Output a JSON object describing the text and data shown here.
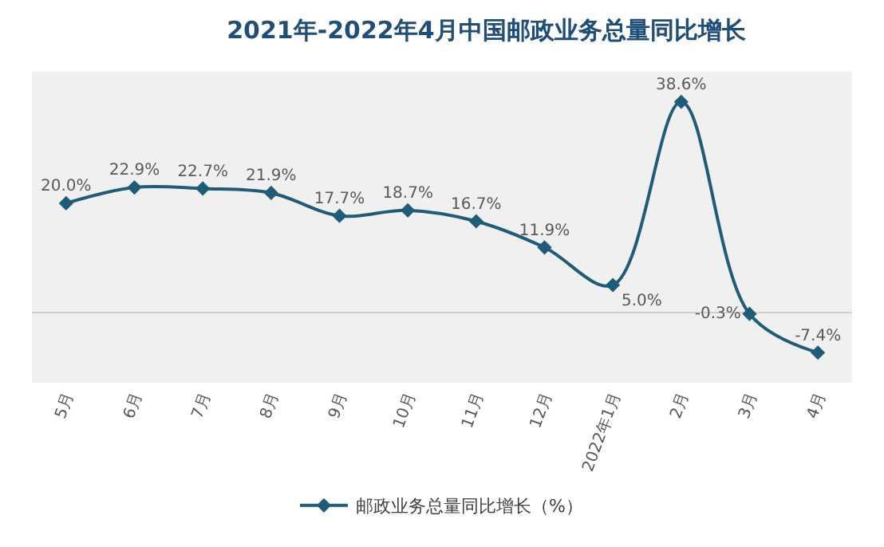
{
  "chart_data": {
    "type": "line",
    "title": "2021年-2022年4月中国邮政业务总量同比增长",
    "categories": [
      "5月",
      "6月",
      "7月",
      "8月",
      "9月",
      "10月",
      "11月",
      "12月",
      "2022年1月",
      "2月",
      "3月",
      "4月"
    ],
    "series": [
      {
        "name": "邮政业务总量同比增长（%）",
        "color": "#1f5c7a",
        "values": [
          20.0,
          22.9,
          22.7,
          21.9,
          17.7,
          18.7,
          16.7,
          11.9,
          5.0,
          38.6,
          -0.3,
          -7.4
        ],
        "value_labels": [
          "20.0%",
          "22.9%",
          "22.7%",
          "21.9%",
          "17.7%",
          "18.7%",
          "16.7%",
          "11.9%",
          "5.0%",
          "38.6%",
          "-0.3%",
          "-7.4%"
        ]
      }
    ],
    "marker": "diamond",
    "line_style": "solid",
    "legend": "bottom",
    "grid": false
  }
}
